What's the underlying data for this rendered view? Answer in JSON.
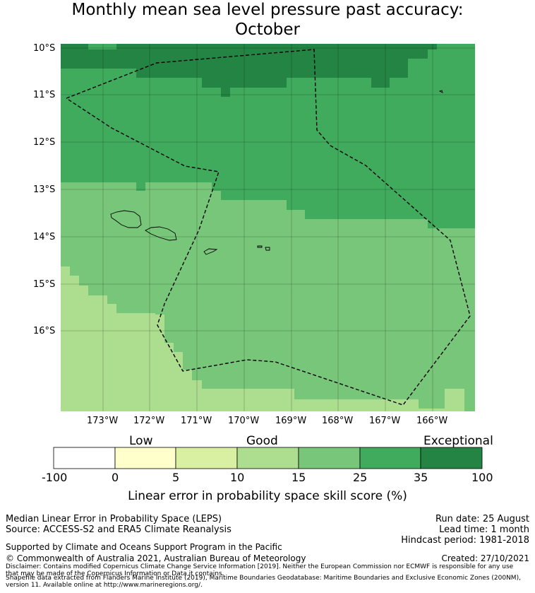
{
  "title_line1": "Monthly mean sea level pressure past accuracy:",
  "title_line2": "October",
  "map": {
    "lat_labels": [
      "10°S",
      "11°S",
      "12°S",
      "13°S",
      "14°S",
      "15°S",
      "16°S"
    ],
    "lon_labels": [
      "173°W",
      "172°W",
      "171°W",
      "170°W",
      "169°W",
      "168°W",
      "167°W",
      "166°W"
    ],
    "colors": {
      "exceptional": "#238443",
      "very_good": "#41ab5d",
      "good_high": "#78c679",
      "good": "#addd8e",
      "fair": "#d9f0a3",
      "low": "#ffffcc",
      "none": "#ffffff"
    }
  },
  "colorbar": {
    "words": [
      "Low",
      "Good",
      "Exceptional"
    ],
    "ticks": [
      "-100",
      "0",
      "5",
      "10",
      "15",
      "25",
      "35",
      "100"
    ],
    "title": "Linear error in probability space skill score (%)"
  },
  "footer": {
    "left1": "Median Linear Error in Probability Space (LEPS)",
    "left2": "Source: ACCESS-S2 and ERA5 Climate Reanalysis",
    "right1": "Run date: 25 August",
    "right2": "Lead time: 1 month",
    "right3": "Hindcast period: 1981-2018",
    "support": "Supported by Climate and Oceans Support Program in the Pacific",
    "copyright": "© Commonwealth of Australia 2021, Australian Bureau of Meteorology",
    "created": "Created: 27/10/2021",
    "disclaimer1": "Disclaimer: Contains modified Copernicus Climate Change Service Information [2019]. Neither the European Commission nor ECMWF is responsible for any use",
    "disclaimer2": "that may be made of the Copernicus Information or Data it contains.",
    "shapefile1": "Shapefile data extracted from Flanders Marine Institute (2019), Maritime Boundaries Geodatabase: Maritime Boundaries and Exclusive Economic Zones (200NM),",
    "shapefile2": "version 11. Available online at http://www.marineregions.org/."
  }
}
